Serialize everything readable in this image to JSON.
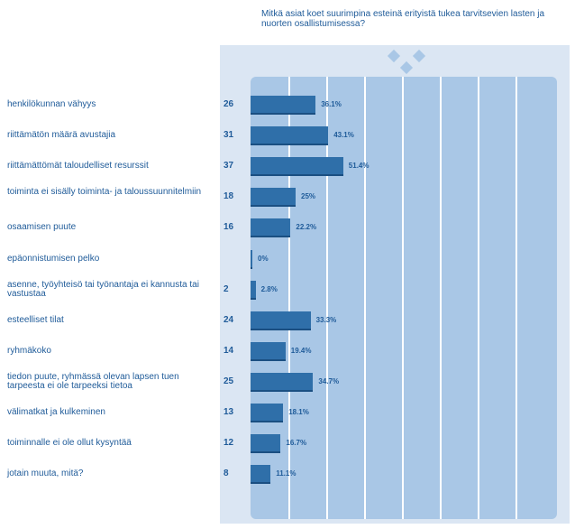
{
  "chart_data": {
    "type": "bar",
    "title": "Mitkä asiat koet suurimpina esteinä erityistä tukea tarvitsevien lasten ja nuorten osallistumisessa?",
    "categories": [
      "henkilökunnan vähyys",
      "riittämätön määrä avustajia",
      "riittämättömät taloudelliset resurssit",
      "toiminta ei sisälly toiminta- ja taloussuunnitelmiin",
      "osaamisen puute",
      "epäonnistumisen pelko",
      "asenne, työyhteisö tai työnantaja ei kannusta tai vastustaa",
      "esteelliset tilat",
      "ryhmäkoko",
      "tiedon puute, ryhmässä olevan lapsen tuen tarpeesta ei ole tarpeeksi tietoa",
      "välimatkat ja kulkeminen",
      "toiminnalle ei ole ollut kysyntää",
      "jotain muuta, mitä?"
    ],
    "counts": [
      "26",
      "31",
      "37",
      "18",
      "16",
      "",
      "2",
      "24",
      "14",
      "25",
      "13",
      "12",
      "8"
    ],
    "values": [
      36.1,
      43.1,
      51.4,
      25,
      22.2,
      0,
      2.8,
      33.3,
      19.4,
      34.7,
      18.1,
      16.7,
      11.1
    ],
    "value_labels": [
      "36.1%",
      "43.1%",
      "51.4%",
      "25%",
      "22.2%",
      "0%",
      "2.8%",
      "33.3%",
      "19.4%",
      "34.7%",
      "18.1%",
      "16.7%",
      "11.1%"
    ],
    "xlim": [
      0,
      100
    ],
    "grid": true,
    "legend": "none"
  },
  "colors": {
    "bar": "#2f6fa9",
    "plot_background": "#a9c7e6",
    "panel_background": "#dbe6f3",
    "text": "#1f5b99"
  },
  "icons": [
    "diamond-logo-icon"
  ]
}
